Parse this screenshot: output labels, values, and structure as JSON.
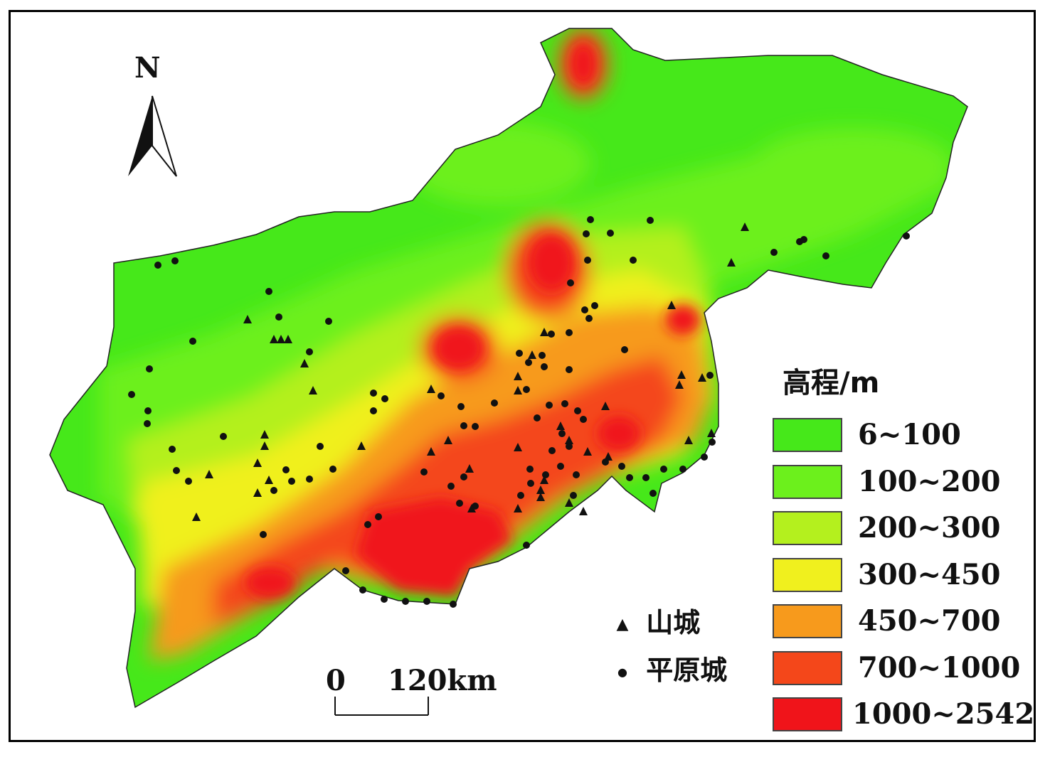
{
  "north": {
    "label": "N",
    "icon": "north-arrow-icon"
  },
  "scale": {
    "zero": "0",
    "distance": "120km"
  },
  "marker_legend": [
    {
      "symbol": "▲",
      "label": "山城",
      "icon": "triangle-icon"
    },
    {
      "symbol": "●",
      "label": "平原城",
      "icon": "dot-icon"
    }
  ],
  "legend": {
    "title": "高程/m",
    "items": [
      {
        "label": "6~100",
        "color": "#46e81a"
      },
      {
        "label": "100~200",
        "color": "#6cf01c"
      },
      {
        "label": "200~300",
        "color": "#b4f01e"
      },
      {
        "label": "300~450",
        "color": "#f0f01e"
      },
      {
        "label": "450~700",
        "color": "#f79a1c"
      },
      {
        "label": "700~1000",
        "color": "#f4471a"
      },
      {
        "label": "1000~2542",
        "color": "#f0141a"
      }
    ]
  }
}
